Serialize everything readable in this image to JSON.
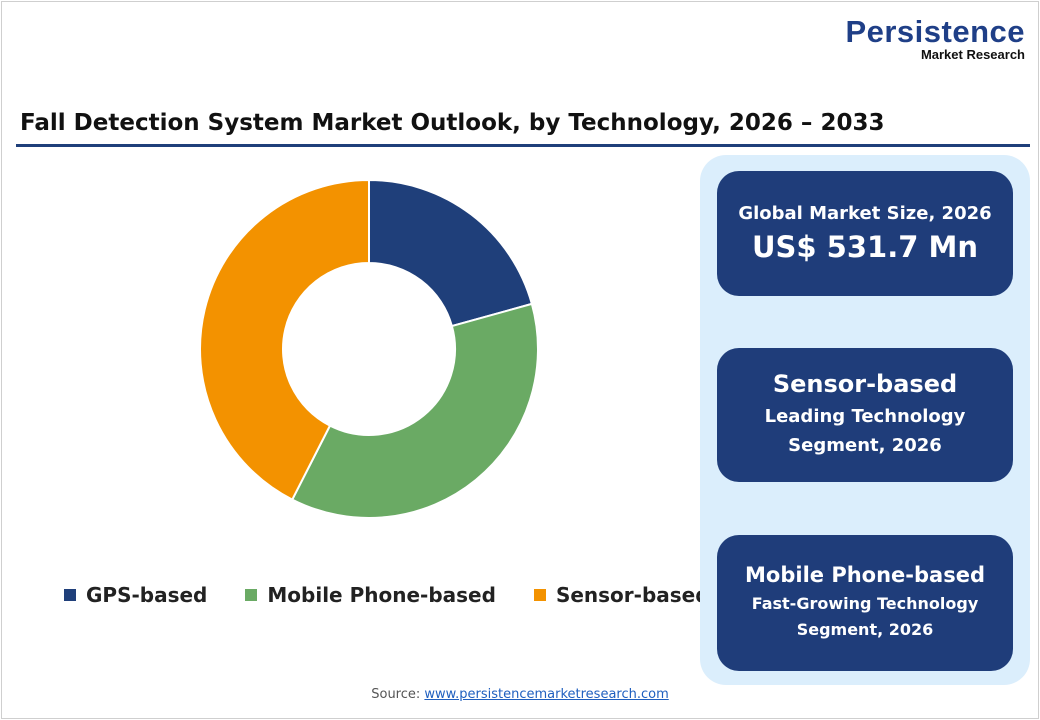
{
  "logo": {
    "name": "Persistence",
    "tagline": "Market Research"
  },
  "title": "Fall Detection System Market Outlook, by Technology, 2026 – 2033",
  "chart_data": {
    "type": "pie",
    "donut": true,
    "categories": [
      "GPS-based",
      "Mobile Phone-based",
      "Sensor-based"
    ],
    "values": [
      20.7,
      36.8,
      42.5
    ],
    "unit": "% share (estimated)",
    "colors": [
      "#1f3f7a",
      "#6aaa64",
      "#f39200"
    ],
    "legend_position": "bottom"
  },
  "cards": [
    {
      "line1": "Global Market Size, 2026",
      "line2": "US$ 531.7 Mn"
    },
    {
      "line1": "Sensor-based",
      "line2": "Leading Technology",
      "line3": "Segment, 2026"
    },
    {
      "line1": "Mobile Phone-based",
      "line2": "Fast-Growing Technology",
      "line3": "Segment, 2026"
    }
  ],
  "source": {
    "label": "Source:",
    "link": "www.persistencemarketresearch.com"
  }
}
